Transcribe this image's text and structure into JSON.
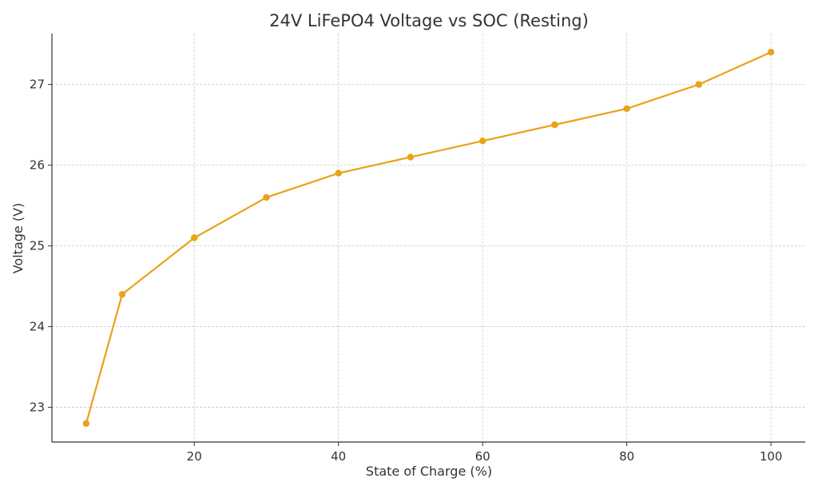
{
  "chart_data": {
    "type": "line",
    "title": "24V LiFePO4 Voltage vs SOC (Resting)",
    "xlabel": "State of Charge (%)",
    "ylabel": "Voltage (V)",
    "x": [
      5,
      10,
      20,
      30,
      40,
      50,
      60,
      70,
      80,
      90,
      100
    ],
    "series": [
      {
        "values": [
          22.8,
          24.4,
          25.1,
          25.6,
          25.9,
          26.1,
          26.3,
          26.5,
          26.7,
          27.0,
          27.4
        ],
        "color": "#E8A317",
        "marker": "circle"
      }
    ],
    "xlim": [
      0.25,
      104.75
    ],
    "ylim": [
      22.57,
      27.63
    ],
    "xticks": [
      "20",
      "40",
      "60",
      "80",
      "100"
    ],
    "yticks": [
      "23",
      "24",
      "25",
      "26",
      "27"
    ],
    "grid": true,
    "legend": "none"
  }
}
